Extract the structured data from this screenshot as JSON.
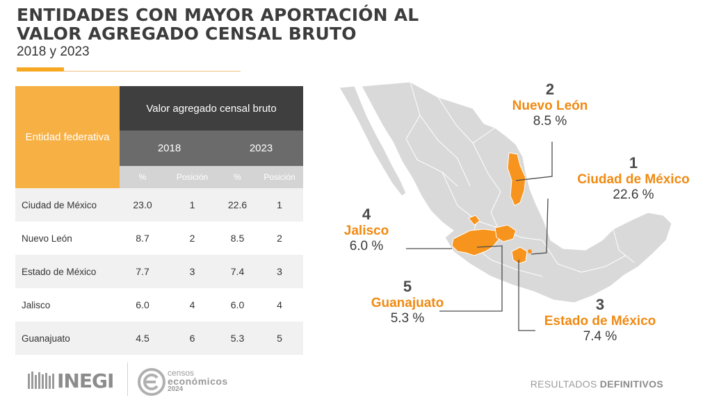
{
  "header": {
    "title": "ENTIDADES CON MAYOR APORTACIÓN AL VALOR AGREGADO CENSAL BRUTO",
    "subtitle": "2018 y 2023"
  },
  "table": {
    "entity_header": "Entidad federativa",
    "main_header": "Valor agregado censal bruto",
    "years": [
      "2018",
      "2023"
    ],
    "sub_headers": [
      "%",
      "Posición",
      "%",
      "Posición"
    ],
    "rows": [
      {
        "entity": "Ciudad de México",
        "pct2018": "23.0",
        "pos2018": "1",
        "pct2023": "22.6",
        "pos2023": "1"
      },
      {
        "entity": "Nuevo León",
        "pct2018": "8.7",
        "pos2018": "2",
        "pct2023": "8.5",
        "pos2023": "2"
      },
      {
        "entity": "Estado de México",
        "pct2018": "7.7",
        "pos2018": "3",
        "pct2023": "7.4",
        "pos2023": "3"
      },
      {
        "entity": "Jalisco",
        "pct2018": "6.0",
        "pos2018": "4",
        "pct2023": "6.0",
        "pos2023": "4"
      },
      {
        "entity": "Guanajuato",
        "pct2018": "4.5",
        "pos2018": "6",
        "pct2023": "5.3",
        "pos2023": "5"
      }
    ]
  },
  "map": {
    "highlight_color": "#f7941d",
    "base_color": "#d9d9d9",
    "callouts": [
      {
        "rank": "1",
        "name": "Ciudad de México",
        "pct": "22.6 %"
      },
      {
        "rank": "2",
        "name": "Nuevo León",
        "pct": "8.5 %"
      },
      {
        "rank": "3",
        "name": "Estado de México",
        "pct": "7.4 %"
      },
      {
        "rank": "4",
        "name": "Jalisco",
        "pct": "6.0 %"
      },
      {
        "rank": "5",
        "name": "Guanajuato",
        "pct": "5.3 %"
      }
    ]
  },
  "footer": {
    "logo": "INEGI",
    "censos_line1": "censos",
    "censos_line2": "económicos",
    "censos_line3": "2024",
    "results_light": "RESULTADOS",
    "results_bold": "DEFINITIVOS"
  }
}
